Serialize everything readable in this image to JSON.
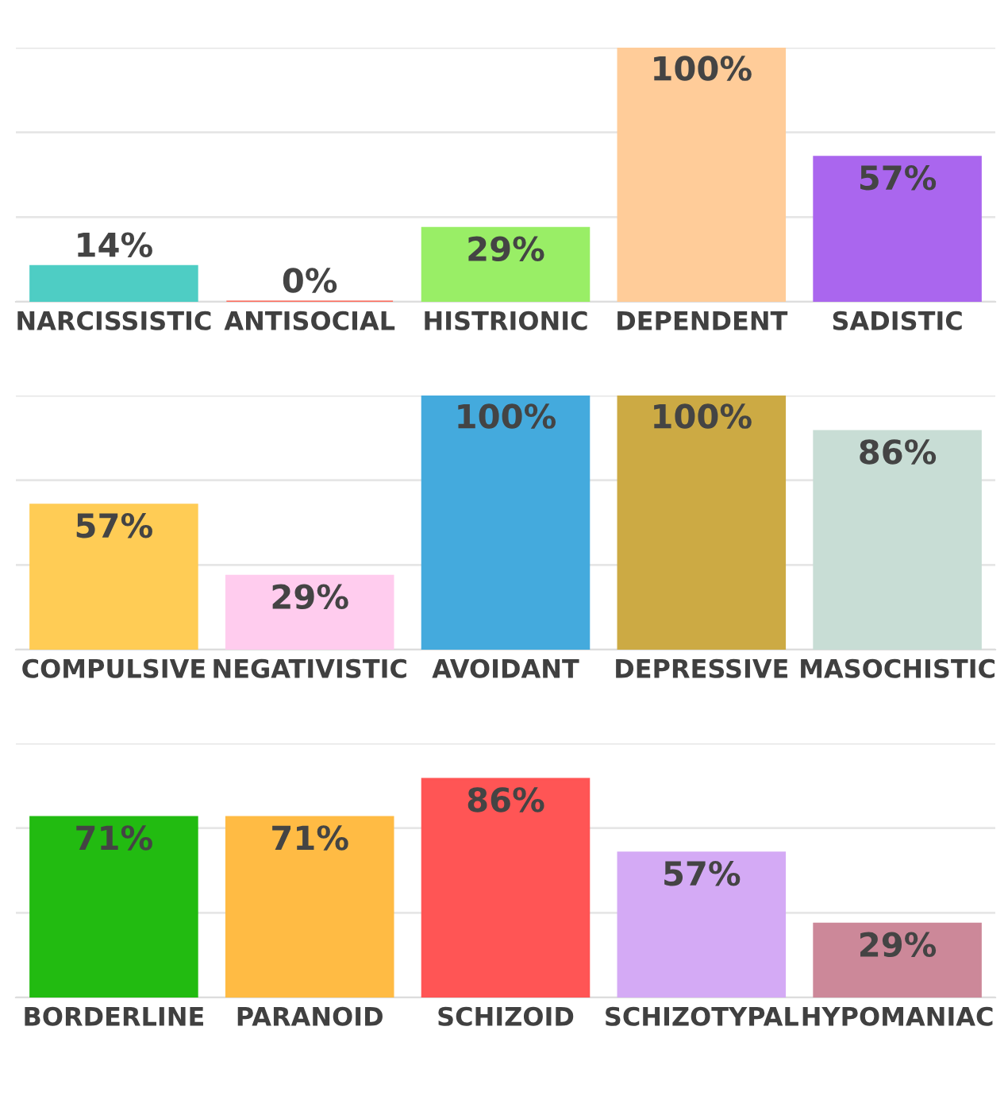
{
  "chart_data": [
    {
      "type": "bar",
      "categories": [
        "NARCISSISTIC",
        "ANTISOCIAL",
        "HISTRIONIC",
        "DEPENDENT",
        "SADISTIC"
      ],
      "values": [
        14,
        0,
        29,
        100,
        57
      ],
      "colors": [
        "#4ecdc4",
        "#ff6b5b",
        "#99ee66",
        "#ffcc99",
        "#aa66ee"
      ],
      "data_labels": true,
      "value_labels": [
        "14%",
        "0%",
        "29%",
        "100%",
        "57%"
      ],
      "ylim": [
        0,
        100
      ],
      "yticks": [
        {
          "value": 0,
          "label": null
        },
        {
          "value": 33.3,
          "label": null
        },
        {
          "value": 66.7,
          "label": null
        },
        {
          "value": 100,
          "label": null
        }
      ],
      "grid": "y",
      "tick_labels": "x"
    },
    {
      "type": "bar",
      "categories": [
        "COMPULSIVE",
        "NEGATIVISTIC",
        "AVOIDANT",
        "DEPRESSIVE",
        "MASOCHISTIC"
      ],
      "values": [
        57,
        29,
        100,
        100,
        86
      ],
      "colors": [
        "#ffcc55",
        "#ffccee",
        "#44aadd",
        "#ccaa44",
        "#c8ddd5"
      ],
      "data_labels": true,
      "value_labels": [
        "57%",
        "29%",
        "100%",
        "100%",
        "86%"
      ],
      "ylim": [
        0,
        100
      ],
      "yticks": [
        {
          "value": 0,
          "label": null
        },
        {
          "value": 33.3,
          "label": null
        },
        {
          "value": 66.7,
          "label": null
        },
        {
          "value": 100,
          "label": null
        }
      ],
      "grid": "y",
      "tick_labels": "x"
    },
    {
      "type": "bar",
      "categories": [
        "BORDERLINE",
        "PARANOID",
        "SCHIZOID",
        "SCHIZOTYPAL",
        "HYPOMANIAC"
      ],
      "values": [
        71,
        71,
        86,
        57,
        29
      ],
      "colors": [
        "#22bb11",
        "#ffbb44",
        "#ff5555",
        "#d4aaf5",
        "#cc8899"
      ],
      "data_labels": true,
      "value_labels": [
        "71%",
        "71%",
        "86%",
        "57%",
        "29%"
      ],
      "ylim": [
        0,
        100
      ],
      "yticks": [
        {
          "value": 0,
          "label": null
        },
        {
          "value": 33.3,
          "label": null
        },
        {
          "value": 66.7,
          "label": null
        },
        {
          "value": 100,
          "label": null
        }
      ],
      "grid": "y",
      "tick_labels": "x"
    }
  ]
}
